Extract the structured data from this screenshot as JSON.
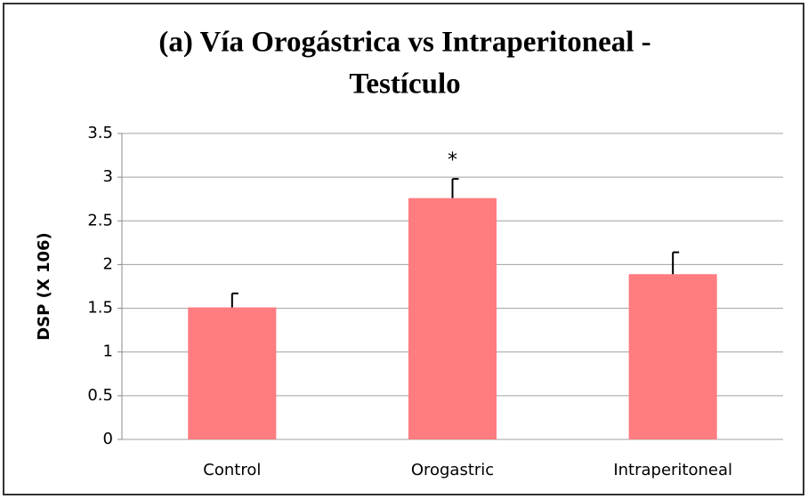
{
  "chart_data": {
    "type": "bar",
    "title": [
      "(a) Vía Orogástrica  vs Intraperitoneal  -",
      "Testículo"
    ],
    "y_label": "DSP (X 106)",
    "categories": [
      "Control",
      "Orogastric",
      "Intraperitoneal"
    ],
    "values": [
      1.51,
      2.76,
      1.89
    ],
    "errors": [
      0.16,
      0.22,
      0.25
    ],
    "color": "#ff7c80",
    "annotations": [
      {
        "text": "*",
        "x": "Orogastric"
      }
    ],
    "ylim": [
      0,
      3.5
    ],
    "yticks": [
      0,
      0.5,
      1,
      1.5,
      2,
      2.5,
      3,
      3.5
    ],
    "grid": true
  }
}
